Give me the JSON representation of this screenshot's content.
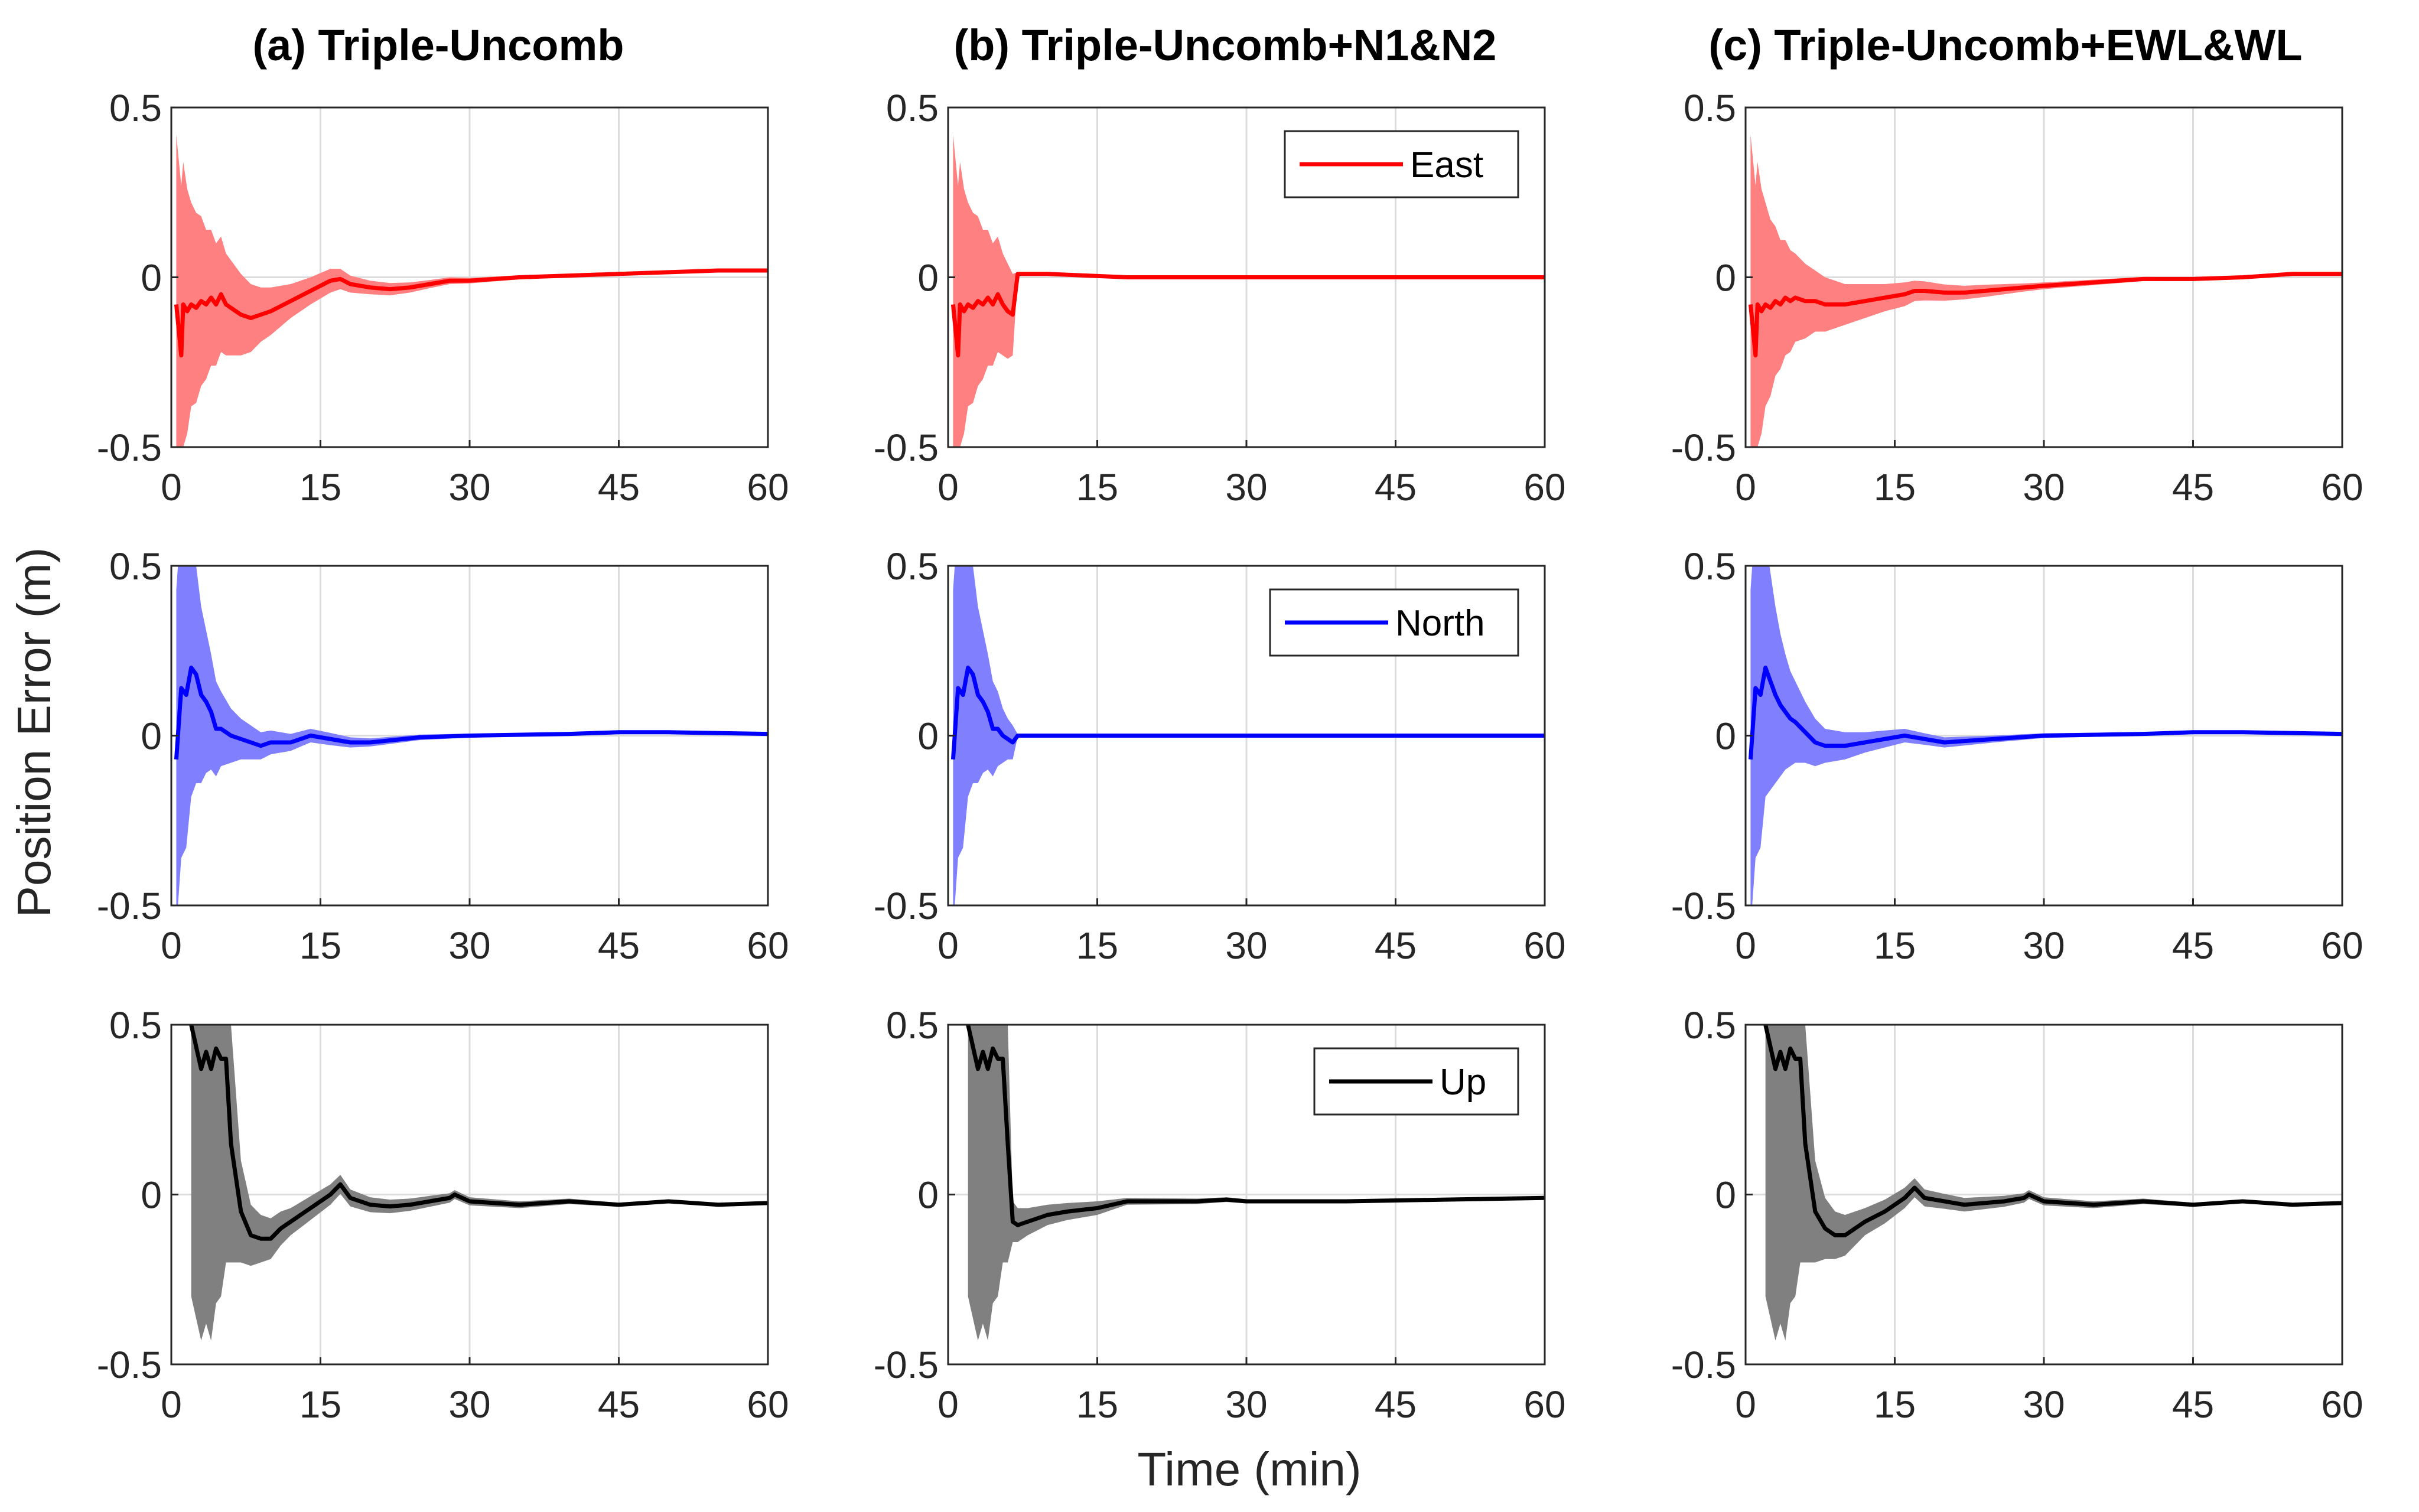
{
  "figure": {
    "ylabel": "Position Error (m)",
    "xlabel": "Time (min)",
    "columns": [
      {
        "title": "(a) Triple-Uncomb"
      },
      {
        "title": "(b) Triple-Uncomb+N1&N2"
      },
      {
        "title": "(c) Triple-Uncomb+EWL&WL"
      }
    ],
    "rows": [
      {
        "component": "East",
        "legend": "East",
        "color": "#ff0000",
        "band_color": "#ff8080"
      },
      {
        "component": "North",
        "legend": "North",
        "color": "#0000ff",
        "band_color": "#8080ff"
      },
      {
        "component": "Up",
        "legend": "Up",
        "color": "#000000",
        "band_color": "#808080"
      }
    ]
  },
  "chart_data": [
    {
      "type": "line",
      "panel": "a-east",
      "title": "(a) Triple-Uncomb",
      "xlabel": "",
      "ylabel": "",
      "series_name": "East",
      "xlim": [
        0,
        60
      ],
      "ylim": [
        -0.5,
        0.5
      ],
      "xticks": [
        "0",
        "15",
        "30",
        "45",
        "60"
      ],
      "yticks": [
        "0.5",
        "0",
        "-0.5"
      ],
      "x": [
        0.5,
        1,
        1.2,
        1.6,
        2,
        2.5,
        3,
        3.5,
        4,
        4.5,
        5,
        5.5,
        6,
        7,
        8,
        9,
        10,
        12,
        14,
        16,
        17,
        18,
        20,
        22,
        24,
        26,
        28,
        30,
        35,
        40,
        45,
        50,
        55,
        60
      ],
      "y": [
        -0.08,
        -0.23,
        -0.08,
        -0.1,
        -0.08,
        -0.09,
        -0.07,
        -0.08,
        -0.06,
        -0.08,
        -0.05,
        -0.08,
        -0.09,
        -0.11,
        -0.12,
        -0.11,
        -0.1,
        -0.07,
        -0.04,
        -0.01,
        -0.005,
        -0.02,
        -0.03,
        -0.035,
        -0.03,
        -0.02,
        -0.01,
        -0.01,
        0,
        0.005,
        0.01,
        0.015,
        0.02,
        0.02
      ],
      "band_halfwidth": [
        0.5,
        0.5,
        0.42,
        0.36,
        0.3,
        0.28,
        0.25,
        0.22,
        0.2,
        0.18,
        0.17,
        0.15,
        0.14,
        0.12,
        0.1,
        0.08,
        0.07,
        0.05,
        0.04,
        0.035,
        0.03,
        0.025,
        0.02,
        0.018,
        0.015,
        0.012,
        0.01,
        0.008,
        0.006,
        0.005,
        0.004,
        0.003,
        0.003,
        0.002
      ]
    },
    {
      "type": "line",
      "panel": "b-east",
      "title": "(b) Triple-Uncomb+N1&N2",
      "xlabel": "",
      "ylabel": "",
      "series_name": "East",
      "xlim": [
        0,
        60
      ],
      "ylim": [
        -0.5,
        0.5
      ],
      "xticks": [
        "0",
        "15",
        "30",
        "45",
        "60"
      ],
      "yticks": [
        "0.5",
        "0",
        "-0.5"
      ],
      "x": [
        0.5,
        1,
        1.2,
        1.6,
        2,
        2.5,
        3,
        3.5,
        4,
        4.5,
        5,
        5.5,
        6,
        6.5,
        7,
        8,
        10,
        14,
        18,
        25,
        35,
        45,
        60
      ],
      "y": [
        -0.08,
        -0.23,
        -0.08,
        -0.1,
        -0.08,
        -0.09,
        -0.07,
        -0.08,
        -0.06,
        -0.08,
        -0.05,
        -0.08,
        -0.1,
        -0.11,
        0.01,
        0.01,
        0.01,
        0.005,
        0,
        0,
        0,
        0,
        0
      ],
      "band_halfwidth": [
        0.5,
        0.5,
        0.42,
        0.36,
        0.3,
        0.28,
        0.25,
        0.22,
        0.2,
        0.18,
        0.17,
        0.15,
        0.14,
        0.12,
        0.005,
        0.004,
        0.004,
        0.003,
        0.003,
        0.002,
        0.002,
        0.002,
        0.002
      ]
    },
    {
      "type": "line",
      "panel": "c-east",
      "title": "(c) Triple-Uncomb+EWL&WL",
      "xlabel": "",
      "ylabel": "",
      "series_name": "East",
      "xlim": [
        0,
        60
      ],
      "ylim": [
        -0.5,
        0.5
      ],
      "xticks": [
        "0",
        "15",
        "30",
        "45",
        "60"
      ],
      "yticks": [
        "0.5",
        "0",
        "-0.5"
      ],
      "x": [
        0.5,
        1,
        1.2,
        1.6,
        2,
        2.5,
        3,
        3.5,
        4,
        4.5,
        5,
        6,
        7,
        8,
        10,
        12,
        14,
        16,
        17,
        18,
        20,
        22,
        24,
        26,
        28,
        30,
        35,
        40,
        45,
        50,
        55,
        60
      ],
      "y": [
        -0.08,
        -0.23,
        -0.08,
        -0.1,
        -0.08,
        -0.09,
        -0.07,
        -0.08,
        -0.06,
        -0.07,
        -0.06,
        -0.07,
        -0.07,
        -0.08,
        -0.08,
        -0.07,
        -0.06,
        -0.05,
        -0.04,
        -0.04,
        -0.045,
        -0.045,
        -0.04,
        -0.035,
        -0.03,
        -0.025,
        -0.015,
        -0.005,
        -0.005,
        0,
        0.01,
        0.01
      ],
      "band_halfwidth": [
        0.5,
        0.5,
        0.42,
        0.36,
        0.3,
        0.26,
        0.22,
        0.19,
        0.17,
        0.15,
        0.13,
        0.11,
        0.09,
        0.08,
        0.06,
        0.05,
        0.04,
        0.035,
        0.03,
        0.028,
        0.024,
        0.02,
        0.018,
        0.015,
        0.012,
        0.01,
        0.008,
        0.006,
        0.005,
        0.004,
        0.003,
        0.003
      ]
    },
    {
      "type": "line",
      "panel": "a-north",
      "title": "",
      "xlabel": "",
      "ylabel": "Position Error (m)",
      "series_name": "North",
      "xlim": [
        0,
        60
      ],
      "ylim": [
        -0.5,
        0.5
      ],
      "xticks": [
        "0",
        "15",
        "30",
        "45",
        "60"
      ],
      "yticks": [
        "0.5",
        "0",
        "-0.5"
      ],
      "x": [
        0.5,
        1,
        1.5,
        2,
        2.5,
        3,
        3.5,
        4,
        4.5,
        5,
        6,
        7,
        8,
        9,
        10,
        12,
        14,
        16,
        18,
        20,
        25,
        30,
        40,
        45,
        50,
        60
      ],
      "y": [
        -0.07,
        0.14,
        0.12,
        0.2,
        0.18,
        0.12,
        0.1,
        0.07,
        0.02,
        0.02,
        0,
        -0.01,
        -0.02,
        -0.03,
        -0.02,
        -0.02,
        0,
        -0.01,
        -0.02,
        -0.02,
        -0.005,
        0,
        0.005,
        0.01,
        0.01,
        0.005
      ],
      "band_halfwidth": [
        0.5,
        0.5,
        0.45,
        0.38,
        0.32,
        0.26,
        0.21,
        0.17,
        0.14,
        0.11,
        0.08,
        0.06,
        0.05,
        0.04,
        0.035,
        0.025,
        0.02,
        0.018,
        0.015,
        0.012,
        0.008,
        0.006,
        0.004,
        0.004,
        0.003,
        0.003
      ]
    },
    {
      "type": "line",
      "panel": "b-north",
      "title": "",
      "xlabel": "",
      "ylabel": "",
      "series_name": "North",
      "xlim": [
        0,
        60
      ],
      "ylim": [
        -0.5,
        0.5
      ],
      "xticks": [
        "0",
        "15",
        "30",
        "45",
        "60"
      ],
      "yticks": [
        "0.5",
        "0",
        "-0.5"
      ],
      "x": [
        0.5,
        1,
        1.5,
        2,
        2.5,
        3,
        3.5,
        4,
        4.5,
        5,
        5.5,
        6,
        6.5,
        7,
        10,
        15,
        20,
        30,
        45,
        60
      ],
      "y": [
        -0.07,
        0.14,
        0.12,
        0.2,
        0.18,
        0.12,
        0.1,
        0.07,
        0.02,
        0.02,
        0,
        -0.01,
        -0.02,
        0,
        0,
        0,
        0,
        0,
        0,
        0
      ],
      "band_halfwidth": [
        0.5,
        0.5,
        0.45,
        0.38,
        0.32,
        0.26,
        0.21,
        0.17,
        0.14,
        0.11,
        0.08,
        0.06,
        0.05,
        0.004,
        0.003,
        0.003,
        0.002,
        0.002,
        0.002,
        0.002
      ]
    },
    {
      "type": "line",
      "panel": "c-north",
      "title": "",
      "xlabel": "",
      "ylabel": "",
      "series_name": "North",
      "xlim": [
        0,
        60
      ],
      "ylim": [
        -0.5,
        0.5
      ],
      "xticks": [
        "0",
        "15",
        "30",
        "45",
        "60"
      ],
      "yticks": [
        "0.5",
        "0",
        "-0.5"
      ],
      "x": [
        0.5,
        1,
        1.5,
        2,
        2.5,
        3,
        3.5,
        4,
        4.5,
        5,
        6,
        7,
        8,
        9,
        10,
        12,
        14,
        16,
        18,
        20,
        25,
        30,
        40,
        45,
        50,
        60
      ],
      "y": [
        -0.07,
        0.14,
        0.12,
        0.2,
        0.16,
        0.12,
        0.09,
        0.07,
        0.05,
        0.04,
        0.01,
        -0.02,
        -0.03,
        -0.03,
        -0.03,
        -0.02,
        -0.01,
        0,
        -0.01,
        -0.02,
        -0.01,
        0,
        0.005,
        0.01,
        0.01,
        0.005
      ],
      "band_halfwidth": [
        0.5,
        0.5,
        0.45,
        0.38,
        0.32,
        0.26,
        0.21,
        0.17,
        0.14,
        0.12,
        0.09,
        0.07,
        0.05,
        0.045,
        0.04,
        0.03,
        0.025,
        0.02,
        0.017,
        0.015,
        0.01,
        0.007,
        0.005,
        0.004,
        0.004,
        0.003
      ]
    },
    {
      "type": "line",
      "panel": "a-up",
      "title": "",
      "xlabel": "",
      "ylabel": "",
      "series_name": "Up",
      "xlim": [
        0,
        60
      ],
      "ylim": [
        -0.5,
        0.5
      ],
      "xticks": [
        "0",
        "15",
        "30",
        "45",
        "60"
      ],
      "yticks": [
        "0.5",
        "0",
        "-0.5"
      ],
      "x": [
        2,
        3,
        3.5,
        4,
        4.5,
        5,
        5.5,
        6,
        7,
        8,
        9,
        10,
        11,
        12,
        14,
        16,
        17,
        18,
        20,
        22,
        24,
        26,
        28,
        28.5,
        30,
        35,
        40,
        45,
        50,
        55,
        60
      ],
      "y": [
        0.5,
        0.37,
        0.42,
        0.37,
        0.43,
        0.4,
        0.4,
        0.15,
        -0.05,
        -0.12,
        -0.13,
        -0.13,
        -0.1,
        -0.08,
        -0.04,
        0,
        0.03,
        -0.01,
        -0.03,
        -0.035,
        -0.03,
        -0.02,
        -0.01,
        0,
        -0.02,
        -0.03,
        -0.02,
        -0.03,
        -0.02,
        -0.03,
        -0.025
      ],
      "band_halfwidth": [
        0.8,
        0.8,
        0.8,
        0.8,
        0.75,
        0.7,
        0.6,
        0.35,
        0.15,
        0.09,
        0.07,
        0.06,
        0.05,
        0.04,
        0.035,
        0.03,
        0.028,
        0.025,
        0.022,
        0.02,
        0.018,
        0.016,
        0.014,
        0.013,
        0.012,
        0.01,
        0.008,
        0.006,
        0.005,
        0.005,
        0.004
      ]
    },
    {
      "type": "line",
      "panel": "b-up",
      "title": "",
      "xlabel": "",
      "ylabel": "",
      "series_name": "Up",
      "xlim": [
        0,
        60
      ],
      "ylim": [
        -0.5,
        0.5
      ],
      "xticks": [
        "0",
        "15",
        "30",
        "45",
        "60"
      ],
      "yticks": [
        "0.5",
        "0",
        "-0.5"
      ],
      "x": [
        2,
        3,
        3.5,
        4,
        4.5,
        5,
        5.5,
        6,
        6.5,
        7,
        8,
        10,
        12,
        15,
        18,
        25,
        28,
        30,
        40,
        50,
        60
      ],
      "y": [
        0.5,
        0.37,
        0.42,
        0.37,
        0.43,
        0.4,
        0.4,
        0.15,
        -0.08,
        -0.09,
        -0.08,
        -0.06,
        -0.05,
        -0.04,
        -0.02,
        -0.02,
        -0.015,
        -0.02,
        -0.02,
        -0.015,
        -0.01
      ],
      "band_halfwidth": [
        0.8,
        0.8,
        0.8,
        0.8,
        0.75,
        0.7,
        0.6,
        0.35,
        0.06,
        0.05,
        0.04,
        0.03,
        0.025,
        0.02,
        0.01,
        0.008,
        0.007,
        0.006,
        0.005,
        0.004,
        0.004
      ]
    },
    {
      "type": "line",
      "panel": "c-up",
      "title": "",
      "xlabel": "",
      "ylabel": "",
      "series_name": "Up",
      "xlim": [
        0,
        60
      ],
      "ylim": [
        -0.5,
        0.5
      ],
      "xticks": [
        "0",
        "15",
        "30",
        "45",
        "60"
      ],
      "yticks": [
        "0.5",
        "0",
        "-0.5"
      ],
      "x": [
        2,
        3,
        3.5,
        4,
        4.5,
        5,
        5.5,
        6,
        7,
        8,
        9,
        10,
        11,
        12,
        14,
        16,
        17,
        18,
        20,
        22,
        24,
        26,
        28,
        28.5,
        30,
        35,
        40,
        45,
        50,
        55,
        60
      ],
      "y": [
        0.5,
        0.37,
        0.42,
        0.37,
        0.43,
        0.4,
        0.4,
        0.15,
        -0.05,
        -0.1,
        -0.12,
        -0.12,
        -0.1,
        -0.08,
        -0.05,
        -0.01,
        0.02,
        -0.01,
        -0.02,
        -0.03,
        -0.025,
        -0.02,
        -0.01,
        0,
        -0.02,
        -0.03,
        -0.02,
        -0.03,
        -0.02,
        -0.03,
        -0.025
      ],
      "band_halfwidth": [
        0.8,
        0.8,
        0.8,
        0.8,
        0.75,
        0.7,
        0.6,
        0.35,
        0.15,
        0.09,
        0.07,
        0.06,
        0.05,
        0.04,
        0.035,
        0.03,
        0.028,
        0.025,
        0.022,
        0.02,
        0.018,
        0.016,
        0.014,
        0.013,
        0.012,
        0.01,
        0.008,
        0.006,
        0.005,
        0.005,
        0.004
      ]
    }
  ]
}
